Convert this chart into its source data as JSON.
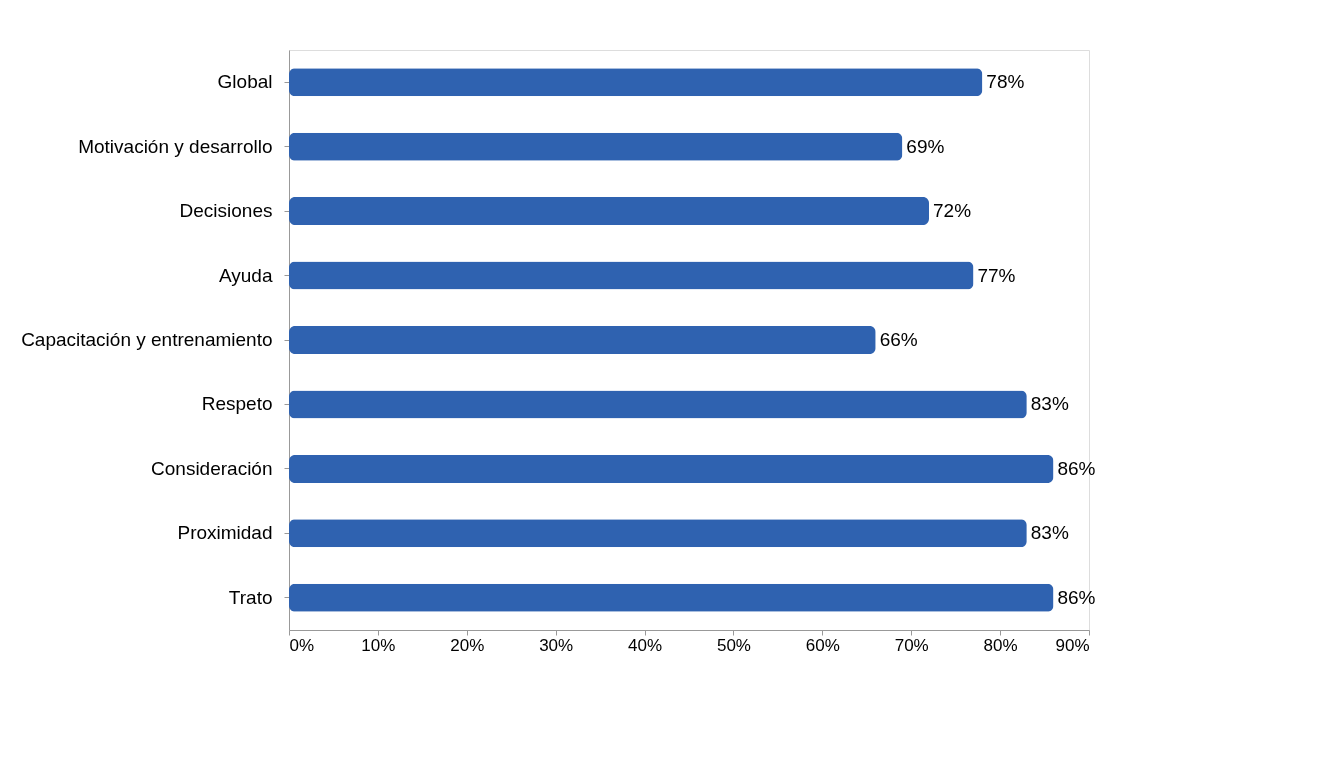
{
  "chart_data": {
    "type": "bar",
    "orientation": "horizontal",
    "categories": [
      "Global",
      "Motivación  y desarrollo",
      "Decisiones",
      "Ayuda",
      "Capacitación y entrenamiento",
      "Respeto",
      "Consideración",
      "Proximidad",
      "Trato"
    ],
    "series": [
      {
        "color": "#2f62b0",
        "values": [
          78,
          69,
          72,
          77,
          66,
          83,
          86,
          83,
          86
        ],
        "value_labels": [
          "78%",
          "69%",
          "72%",
          "77%",
          "66%",
          "83%",
          "86%",
          "83%",
          "86%"
        ]
      }
    ],
    "xlim": [
      0,
      90
    ],
    "xticks": [
      {
        "value": 0,
        "label": "0%"
      },
      {
        "value": 10,
        "label": "10%"
      },
      {
        "value": 20,
        "label": "20%"
      },
      {
        "value": 30,
        "label": "30%"
      },
      {
        "value": 40,
        "label": "40%"
      },
      {
        "value": 50,
        "label": "50%"
      },
      {
        "value": 60,
        "label": "60%"
      },
      {
        "value": 70,
        "label": "70%"
      },
      {
        "value": 80,
        "label": "80%"
      },
      {
        "value": 90,
        "label": "90%"
      }
    ],
    "grid": false
  }
}
